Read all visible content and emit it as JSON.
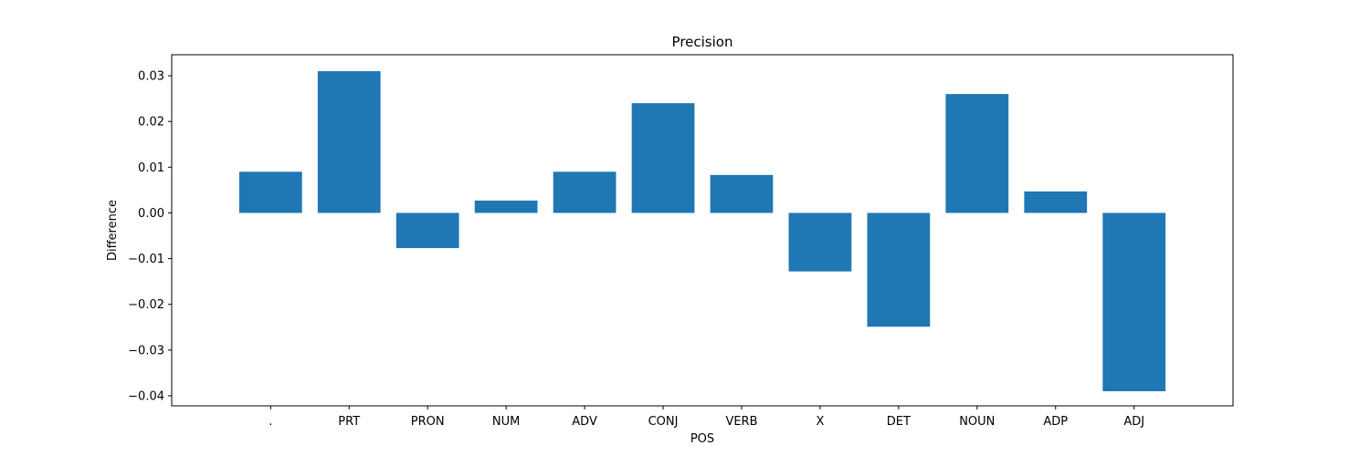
{
  "chart_data": {
    "type": "bar",
    "title": "Precision",
    "xlabel": "POS",
    "ylabel": "Difference",
    "categories": [
      ".",
      "PRT",
      "PRON",
      "NUM",
      "ADV",
      "CONJ",
      "VERB",
      "X",
      "DET",
      "NOUN",
      "ADP",
      "ADJ"
    ],
    "values": [
      0.009,
      0.031,
      -0.0077,
      0.0027,
      0.009,
      0.024,
      0.0083,
      -0.0128,
      -0.0249,
      0.026,
      0.0047,
      -0.039
    ],
    "ylim": [
      -0.0422,
      0.0346
    ],
    "yticks": [
      -0.04,
      -0.03,
      -0.02,
      -0.01,
      0.0,
      0.01,
      0.02,
      0.03
    ],
    "ytick_labels": [
      "−0.04",
      "−0.03",
      "−0.02",
      "−0.01",
      "0.00",
      "0.01",
      "0.02",
      "0.03"
    ],
    "grid": false,
    "bar_color": "#1f77b4"
  }
}
